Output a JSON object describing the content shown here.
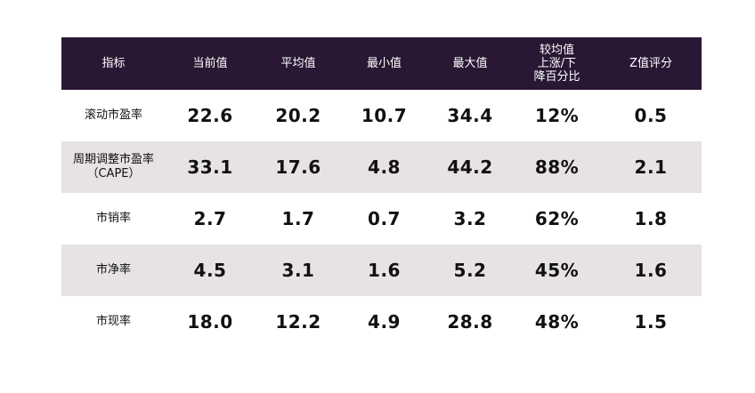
{
  "headers": [
    "指标",
    "当前值",
    "平均值",
    "最小值",
    "最大值",
    "较均值\n上涨/下\n降百分比",
    "Z值评分"
  ],
  "rows": [
    {
      "name": "滚动市盈率",
      "current": "22.6",
      "mean": "20.2",
      "min": "10.7",
      "max": "34.4",
      "pct": "12%",
      "z": "0.5"
    },
    {
      "name": "周期调整市盈率\n（CAPE）",
      "current": "33.1",
      "mean": "17.6",
      "min": "4.8",
      "max": "44.2",
      "pct": "88%",
      "z": "2.1"
    },
    {
      "name": "市销率",
      "current": "2.7",
      "mean": "1.7",
      "min": "0.7",
      "max": "3.2",
      "pct": "62%",
      "z": "1.8"
    },
    {
      "name": "市净率",
      "current": "4.5",
      "mean": "3.1",
      "min": "1.6",
      "max": "5.2",
      "pct": "45%",
      "z": "1.6"
    },
    {
      "name": "市现率",
      "current": "18.0",
      "mean": "12.2",
      "min": "4.9",
      "max": "28.8",
      "pct": "48%",
      "z": "1.5"
    }
  ],
  "colors": {
    "header_bg": "#2a1734",
    "row_shade": "#e6e2e6"
  }
}
